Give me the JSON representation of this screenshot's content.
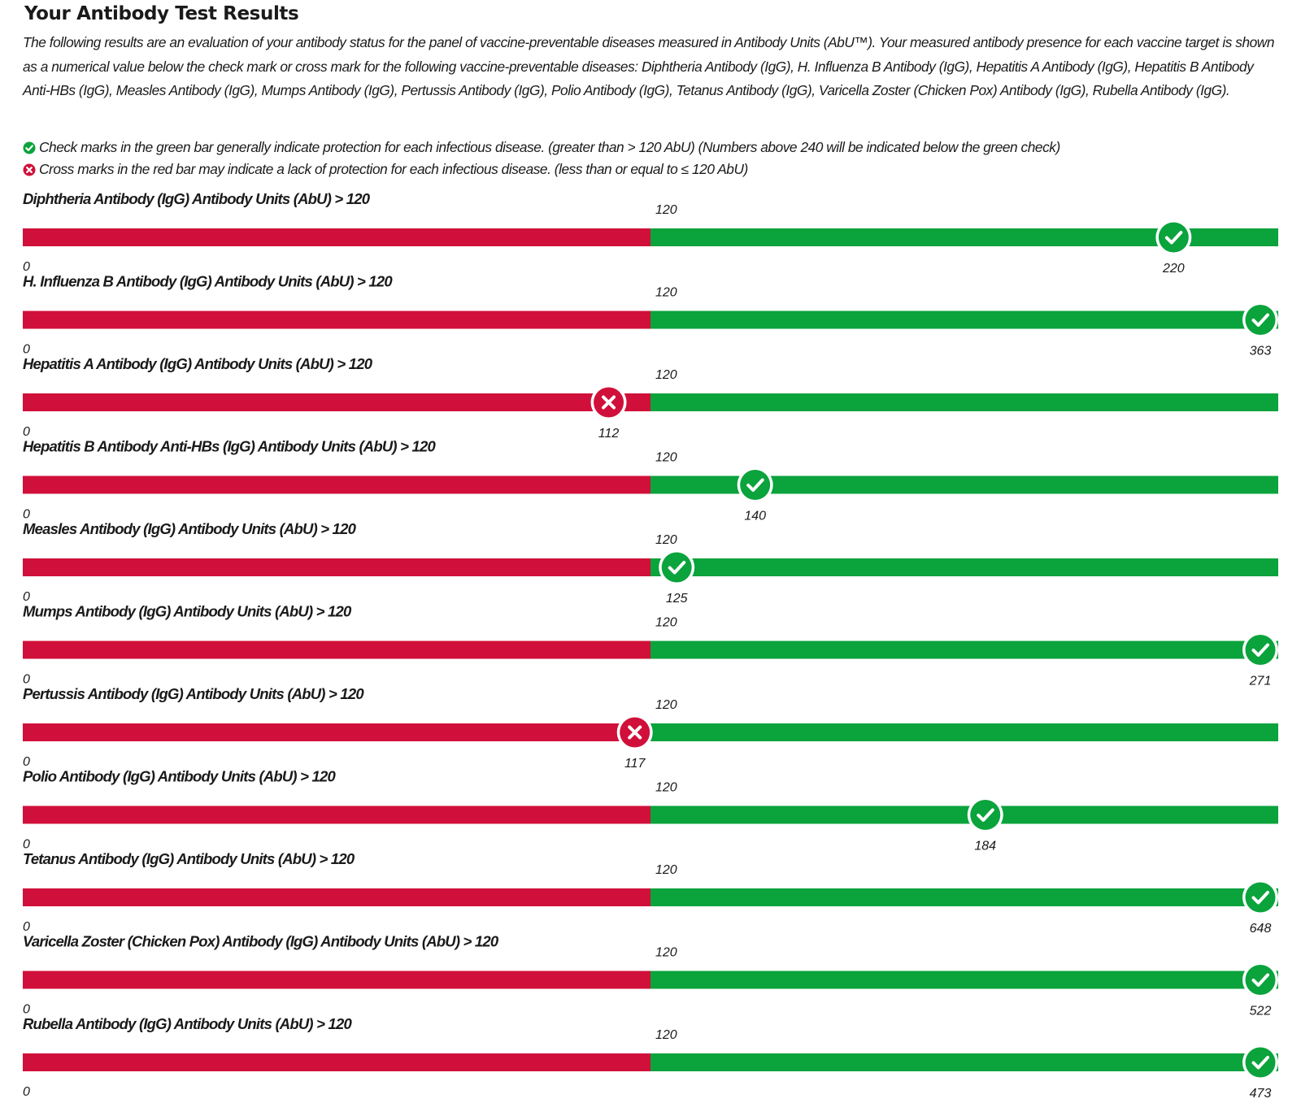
{
  "page": {
    "title": "Your Antibody Test Results",
    "intro": "The following results are an evaluation of your antibody status for the panel of vaccine-preventable diseases measured in Antibody Units (AbU™). Your measured antibody presence for each vaccine target is shown as a numerical value below the check mark or cross mark for the following vaccine-preventable diseases: Diphtheria Antibody (IgG), H. Influenza B Antibody (IgG), Hepatitis A Antibody (IgG), Hepatitis B Antibody Anti-HBs (IgG), Measles Antibody (IgG), Mumps Antibody (IgG), Pertussis Antibody (IgG), Polio Antibody (IgG), Tetanus Antibody (IgG), Varicella Zoster (Chicken Pox) Antibody (IgG), Rubella Antibody (IgG).",
    "legend_check": "Check marks in the green bar generally indicate protection for each infectious disease. (greater than > 120 AbU) (Numbers above 240 will be indicated below the green check)",
    "legend_cross": "Cross marks in the red bar may indicate a lack of protection for each infectious disease. (less than or equal to ≤ 120 AbU)"
  },
  "colors": {
    "red": "#d0103a",
    "green": "#0aa33c",
    "text": "#1a1a1a"
  },
  "chart_data": {
    "type": "bar",
    "scale": {
      "min": 0,
      "threshold": 120,
      "max": 240
    },
    "tick_labels": {
      "min": "0",
      "threshold": "120"
    },
    "rows": [
      {
        "title": "Diphtheria Antibody (IgG) Antibody Units (AbU) > 120",
        "value": 220,
        "value_label": "220",
        "status": "check"
      },
      {
        "title": "H. Influenza B Antibody (IgG) Antibody Units (AbU) > 120",
        "value": 363,
        "value_label": "363",
        "status": "check"
      },
      {
        "title": "Hepatitis A Antibody (IgG) Antibody Units (AbU) > 120",
        "value": 112,
        "value_label": "112",
        "status": "cross"
      },
      {
        "title": "Hepatitis B Antibody Anti-HBs (IgG) Antibody Units (AbU) > 120",
        "value": 140,
        "value_label": "140",
        "status": "check"
      },
      {
        "title": "Measles Antibody (IgG) Antibody Units (AbU) > 120",
        "value": 125,
        "value_label": "125",
        "status": "check"
      },
      {
        "title": "Mumps Antibody (IgG) Antibody Units (AbU) > 120",
        "value": 271,
        "value_label": "271",
        "status": "check"
      },
      {
        "title": "Pertussis Antibody (IgG) Antibody Units (AbU) > 120",
        "value": 117,
        "value_label": "117",
        "status": "cross"
      },
      {
        "title": "Polio Antibody (IgG) Antibody Units (AbU) > 120",
        "value": 184,
        "value_label": "184",
        "status": "check"
      },
      {
        "title": "Tetanus Antibody (IgG) Antibody Units (AbU) > 120",
        "value": 648,
        "value_label": "648",
        "status": "check"
      },
      {
        "title": "Varicella Zoster (Chicken Pox) Antibody (IgG) Antibody Units (AbU) > 120",
        "value": 522,
        "value_label": "522",
        "status": "check"
      },
      {
        "title": "Rubella Antibody (IgG) Antibody Units (AbU) > 120",
        "value": 473,
        "value_label": "473",
        "status": "check"
      }
    ]
  }
}
